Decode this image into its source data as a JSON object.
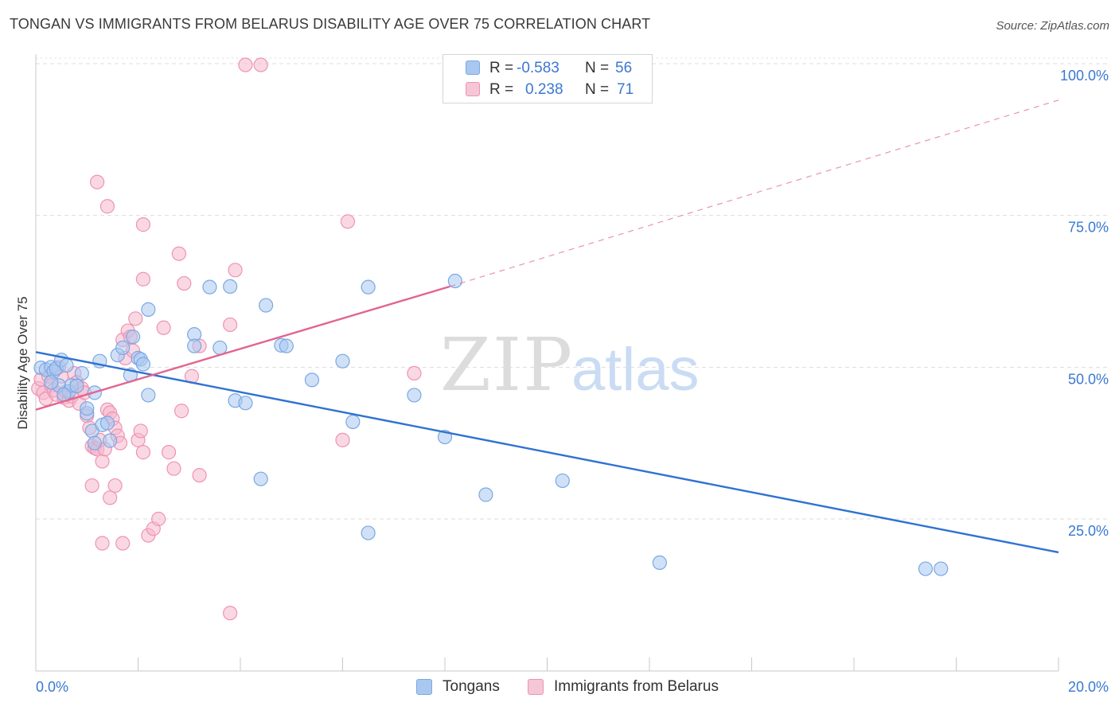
{
  "title": "TONGAN VS IMMIGRANTS FROM BELARUS DISABILITY AGE OVER 75 CORRELATION CHART",
  "source": "Source: ZipAtlas.com",
  "watermark": {
    "zip": "ZIP",
    "atlas": "atlas"
  },
  "colors": {
    "blue_fill": "#a9c8f0",
    "blue_stroke": "#7aa8e4",
    "blue_line": "#2f72d2",
    "pink_fill": "#f5b8cc",
    "pink_stroke": "#ee93b2",
    "pink_line": "#e2658f",
    "axis_text": "#3a78d0",
    "grid": "#dddddd"
  },
  "legend": {
    "rows": [
      {
        "r_label": "R =",
        "r_value": "-0.583",
        "n_label": "N =",
        "n_value": "56"
      },
      {
        "r_label": "R =",
        "r_value": "0.238",
        "n_label": "N =",
        "n_value": "71"
      }
    ]
  },
  "bottom_legend": [
    "Tongans",
    "Immigrants from Belarus"
  ],
  "chart_data": {
    "type": "scatter",
    "title": "TONGAN VS IMMIGRANTS FROM BELARUS DISABILITY AGE OVER 75 CORRELATION CHART",
    "xlabel": "",
    "ylabel": "Disability Age Over 75",
    "xlim": [
      0,
      20
    ],
    "ylim": [
      0,
      100
    ],
    "x_tick_labels": [
      "0.0%",
      "20.0%"
    ],
    "y_ticks": [
      25,
      50,
      75,
      100
    ],
    "y_tick_labels": [
      "25.0%",
      "50.0%",
      "75.0%",
      "100.0%"
    ],
    "series": [
      {
        "name": "Tongans",
        "color": "blue",
        "trend": {
          "x0": 0,
          "y0": 52.5,
          "x1": 20,
          "y1": 19.5,
          "dashed_to": null
        },
        "points": [
          [
            0.1,
            49.9
          ],
          [
            0.2,
            49.6
          ],
          [
            0.3,
            50.0
          ],
          [
            0.35,
            49.3
          ],
          [
            0.4,
            49.8
          ],
          [
            0.45,
            47.0
          ],
          [
            0.5,
            51.2
          ],
          [
            0.6,
            50.3
          ],
          [
            0.65,
            46.0
          ],
          [
            0.7,
            47.0
          ],
          [
            0.8,
            46.9
          ],
          [
            0.9,
            49.0
          ],
          [
            1.0,
            42.4
          ],
          [
            1.0,
            43.2
          ],
          [
            1.1,
            39.5
          ],
          [
            1.15,
            37.5
          ],
          [
            1.25,
            51.0
          ],
          [
            1.3,
            40.5
          ],
          [
            1.4,
            40.8
          ],
          [
            1.45,
            37.9
          ],
          [
            1.6,
            52.0
          ],
          [
            1.7,
            53.2
          ],
          [
            1.85,
            48.7
          ],
          [
            1.9,
            55.0
          ],
          [
            2.0,
            51.5
          ],
          [
            2.05,
            51.3
          ],
          [
            2.1,
            50.5
          ],
          [
            2.2,
            45.4
          ],
          [
            2.2,
            59.5
          ],
          [
            3.1,
            55.4
          ],
          [
            3.1,
            53.5
          ],
          [
            3.6,
            53.2
          ],
          [
            3.4,
            63.2
          ],
          [
            3.8,
            63.3
          ],
          [
            3.9,
            44.5
          ],
          [
            4.1,
            44.1
          ],
          [
            4.4,
            31.6
          ],
          [
            4.5,
            60.2
          ],
          [
            4.8,
            53.6
          ],
          [
            4.9,
            53.5
          ],
          [
            5.4,
            47.9
          ],
          [
            6.0,
            51.0
          ],
          [
            6.2,
            41.0
          ],
          [
            6.5,
            63.2
          ],
          [
            6.5,
            22.7
          ],
          [
            7.4,
            45.4
          ],
          [
            8.0,
            38.5
          ],
          [
            8.2,
            64.2
          ],
          [
            8.8,
            29.0
          ],
          [
            10.3,
            31.3
          ],
          [
            12.2,
            17.8
          ],
          [
            17.4,
            16.8
          ],
          [
            17.7,
            16.8
          ],
          [
            0.3,
            47.5
          ],
          [
            0.55,
            45.5
          ],
          [
            1.15,
            45.8
          ]
        ]
      },
      {
        "name": "Immigrants from Belarus",
        "color": "pink",
        "trend": {
          "x0": 0,
          "y0": 43.0,
          "x1": 8.1,
          "y1": 63.3,
          "dashed_to": {
            "x": 20,
            "y": 94.0
          }
        },
        "points": [
          [
            0.05,
            46.5
          ],
          [
            0.1,
            48.0
          ],
          [
            0.15,
            45.8
          ],
          [
            0.2,
            44.8
          ],
          [
            0.25,
            48.5
          ],
          [
            0.3,
            47.0
          ],
          [
            0.35,
            46.2
          ],
          [
            0.4,
            45.5
          ],
          [
            0.45,
            50.0
          ],
          [
            0.5,
            48.5
          ],
          [
            0.55,
            45.0
          ],
          [
            0.6,
            46.0
          ],
          [
            0.65,
            44.5
          ],
          [
            0.7,
            45.2
          ],
          [
            0.75,
            49.0
          ],
          [
            0.8,
            47.5
          ],
          [
            0.85,
            44.0
          ],
          [
            0.9,
            46.5
          ],
          [
            0.95,
            45.8
          ],
          [
            1.0,
            42.0
          ],
          [
            1.05,
            40.0
          ],
          [
            1.1,
            37.0
          ],
          [
            1.15,
            36.7
          ],
          [
            1.2,
            36.5
          ],
          [
            1.25,
            38.0
          ],
          [
            1.3,
            34.5
          ],
          [
            1.35,
            36.5
          ],
          [
            1.4,
            43.0
          ],
          [
            1.45,
            42.5
          ],
          [
            1.5,
            41.5
          ],
          [
            1.55,
            40.0
          ],
          [
            1.6,
            38.7
          ],
          [
            1.65,
            37.5
          ],
          [
            1.7,
            54.5
          ],
          [
            1.75,
            51.5
          ],
          [
            1.8,
            56.0
          ],
          [
            1.85,
            55.0
          ],
          [
            1.9,
            52.7
          ],
          [
            1.95,
            58.0
          ],
          [
            2.0,
            38.0
          ],
          [
            2.05,
            39.5
          ],
          [
            2.1,
            36.0
          ],
          [
            1.2,
            80.5
          ],
          [
            1.4,
            76.5
          ],
          [
            2.1,
            73.5
          ],
          [
            2.1,
            64.5
          ],
          [
            2.2,
            22.3
          ],
          [
            2.3,
            23.4
          ],
          [
            2.4,
            25.0
          ],
          [
            2.5,
            56.5
          ],
          [
            2.6,
            36.0
          ],
          [
            2.7,
            33.3
          ],
          [
            2.8,
            68.7
          ],
          [
            2.9,
            63.8
          ],
          [
            3.2,
            53.5
          ],
          [
            3.2,
            32.2
          ],
          [
            3.8,
            57.0
          ],
          [
            3.9,
            66.0
          ],
          [
            3.8,
            9.5
          ],
          [
            4.1,
            99.8
          ],
          [
            4.4,
            99.8
          ],
          [
            6.0,
            38.0
          ],
          [
            6.1,
            74.0
          ],
          [
            7.4,
            49.0
          ],
          [
            1.1,
            30.5
          ],
          [
            1.3,
            21.0
          ],
          [
            1.45,
            28.5
          ],
          [
            1.55,
            30.5
          ],
          [
            1.7,
            21.0
          ],
          [
            2.85,
            42.8
          ],
          [
            3.05,
            48.5
          ]
        ]
      }
    ]
  }
}
